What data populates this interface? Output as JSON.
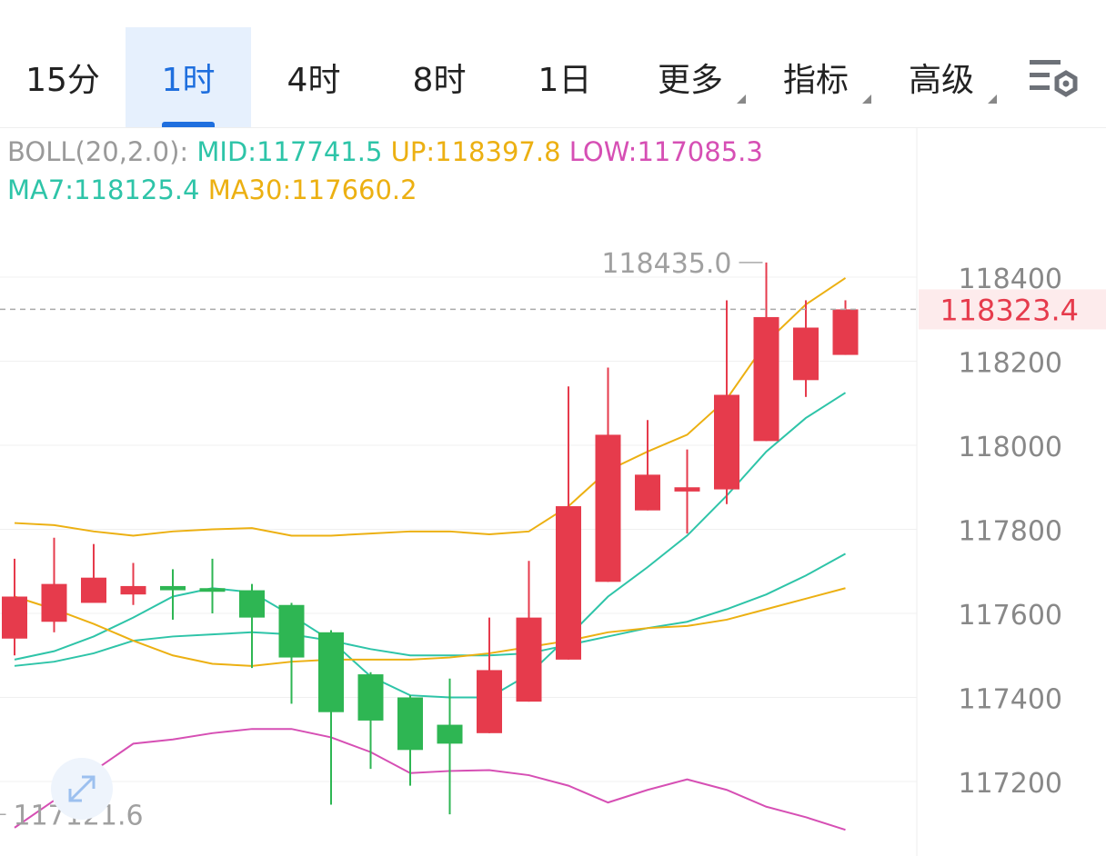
{
  "tabs": [
    {
      "label": "15分",
      "active": false,
      "dropdown": false
    },
    {
      "label": "1时",
      "active": true,
      "dropdown": false
    },
    {
      "label": "4时",
      "active": false,
      "dropdown": false
    },
    {
      "label": "8时",
      "active": false,
      "dropdown": false
    },
    {
      "label": "1日",
      "active": false,
      "dropdown": false
    },
    {
      "label": "更多",
      "active": false,
      "dropdown": true
    },
    {
      "label": "指标",
      "active": false,
      "dropdown": true
    },
    {
      "label": "高级",
      "active": false,
      "dropdown": true
    }
  ],
  "icons": {
    "settings": "chart-settings-icon",
    "expand": "expand-arrows-icon"
  },
  "legend": {
    "boll_label": "BOLL(20,2.0): ",
    "mid": "MID:117741.5",
    "up": "UP:118397.8",
    "low": "LOW:117085.3",
    "ma7": "MA7:118125.4",
    "ma30": "MA30:117660.2"
  },
  "colors": {
    "up_candle": "#e63b4c",
    "down_candle": "#2eb653",
    "mid": "#2ec4a8",
    "upper": "#ecb012",
    "lower": "#d64fb4",
    "ma7": "#2ec4a8",
    "ma30": "#ecb012",
    "price_tag": "#e63b4c",
    "accent": "#1f6fde"
  },
  "chart_data": {
    "type": "candlestick",
    "ylim": [
      117100,
      118480
    ],
    "y_ticks": [
      "118400",
      "118200",
      "118000",
      "117800",
      "117600",
      "117400",
      "117200"
    ],
    "y_tick_values": [
      118400,
      118200,
      118000,
      117800,
      117600,
      117400,
      117200
    ],
    "current_price": "118323.4",
    "current_price_value": 118323.4,
    "max_label": "118435.0",
    "max_value": 118435.0,
    "min_label": "117121.6",
    "min_value": 117121.6,
    "candles": [
      {
        "o": 117540,
        "h": 117730,
        "l": 117500,
        "c": 117640
      },
      {
        "o": 117580,
        "h": 117780,
        "l": 117555,
        "c": 117670
      },
      {
        "o": 117625,
        "h": 117765,
        "l": 117630,
        "c": 117685
      },
      {
        "o": 117645,
        "h": 117720,
        "l": 117620,
        "c": 117665
      },
      {
        "o": 117665,
        "h": 117705,
        "l": 117585,
        "c": 117655
      },
      {
        "o": 117660,
        "h": 117730,
        "l": 117600,
        "c": 117658
      },
      {
        "o": 117655,
        "h": 117670,
        "l": 117470,
        "c": 117590
      },
      {
        "o": 117620,
        "h": 117625,
        "l": 117385,
        "c": 117495
      },
      {
        "o": 117555,
        "h": 117560,
        "l": 117145,
        "c": 117365
      },
      {
        "o": 117455,
        "h": 117460,
        "l": 117230,
        "c": 117345
      },
      {
        "o": 117400,
        "h": 117405,
        "l": 117190,
        "c": 117275
      },
      {
        "o": 117335,
        "h": 117445,
        "l": 117122,
        "c": 117290
      },
      {
        "o": 117315,
        "h": 117590,
        "l": 117315,
        "c": 117465
      },
      {
        "o": 117390,
        "h": 117725,
        "l": 117390,
        "c": 117590
      },
      {
        "o": 117490,
        "h": 118140,
        "l": 117490,
        "c": 117855
      },
      {
        "o": 117675,
        "h": 118185,
        "l": 117675,
        "c": 118025
      },
      {
        "o": 117845,
        "h": 118060,
        "l": 117845,
        "c": 117930
      },
      {
        "o": 117890,
        "h": 117990,
        "l": 117790,
        "c": 117900
      },
      {
        "o": 117895,
        "h": 118345,
        "l": 117860,
        "c": 118120
      },
      {
        "o": 118010,
        "h": 118435,
        "l": 118010,
        "c": 118305
      },
      {
        "o": 118155,
        "h": 118345,
        "l": 118115,
        "c": 118280
      },
      {
        "o": 118215,
        "h": 118345,
        "l": 118215,
        "c": 118323.4
      }
    ],
    "series": [
      {
        "name": "UP",
        "values": [
          117815,
          117810,
          117795,
          117785,
          117795,
          117800,
          117803,
          117785,
          117785,
          117790,
          117795,
          117795,
          117788,
          117795,
          117855,
          117940,
          117985,
          118025,
          118110,
          118245,
          118335,
          118398
        ]
      },
      {
        "name": "MID",
        "values": [
          117475,
          117485,
          117505,
          117535,
          117545,
          117550,
          117555,
          117550,
          117535,
          117515,
          117500,
          117500,
          117500,
          117505,
          117525,
          117545,
          117565,
          117580,
          117610,
          117645,
          117690,
          117742
        ]
      },
      {
        "name": "LOW",
        "values": [
          117090,
          117155,
          117225,
          117290,
          117300,
          117315,
          117325,
          117325,
          117305,
          117270,
          117220,
          117225,
          117227,
          117215,
          117190,
          117150,
          117180,
          117205,
          117180,
          117140,
          117115,
          117085
        ]
      },
      {
        "name": "MA7",
        "values": [
          117490,
          117510,
          117545,
          117590,
          117640,
          117660,
          117650,
          117595,
          117535,
          117450,
          117405,
          117400,
          117400,
          117455,
          117545,
          117640,
          117710,
          117785,
          117880,
          117985,
          118065,
          118125
        ]
      },
      {
        "name": "MA30",
        "values": [
          117640,
          117610,
          117575,
          117535,
          117500,
          117480,
          117475,
          117485,
          117490,
          117490,
          117490,
          117495,
          117505,
          117520,
          117535,
          117555,
          117565,
          117570,
          117585,
          117610,
          117635,
          117660
        ]
      }
    ]
  }
}
